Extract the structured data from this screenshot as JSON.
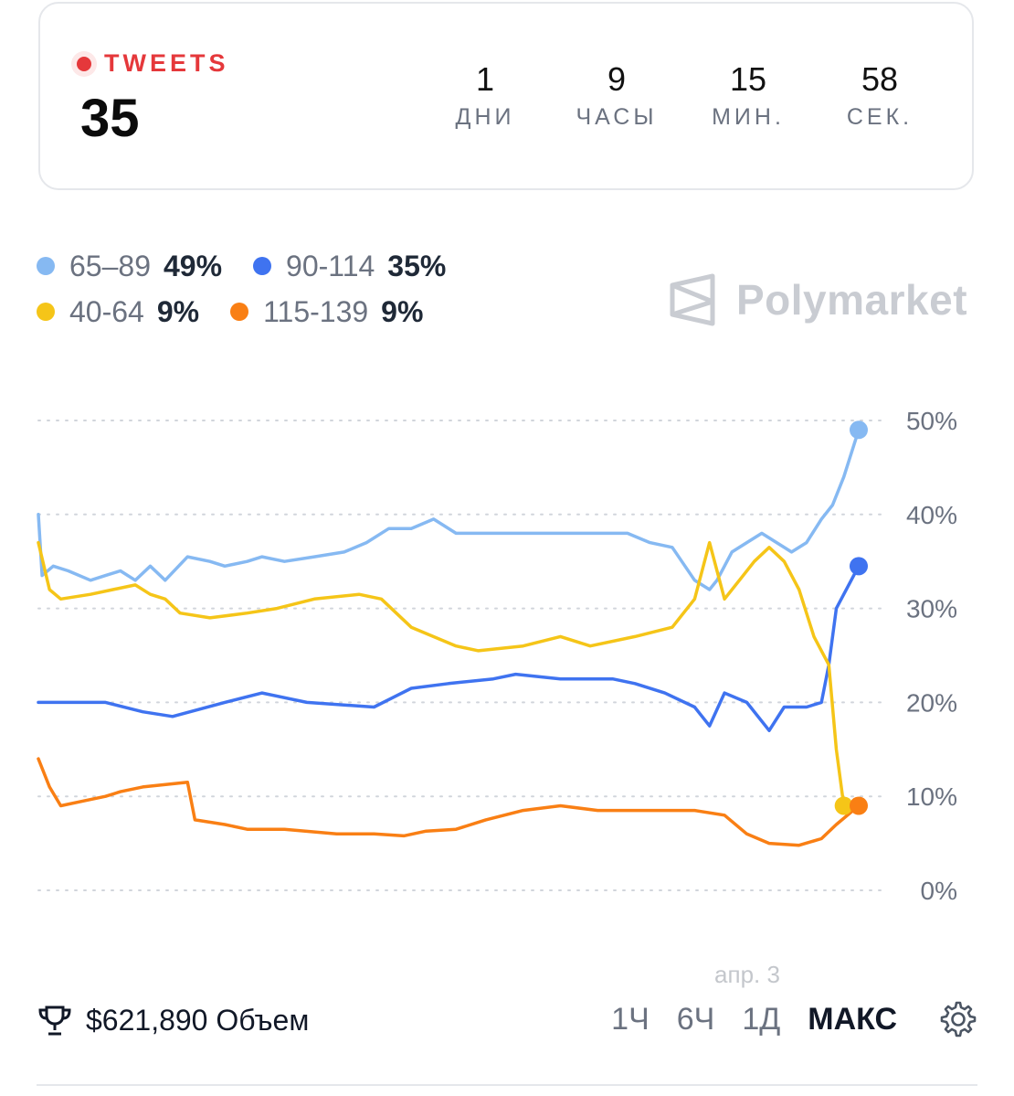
{
  "header": {
    "live_label": "TWEETS",
    "count": "35",
    "countdown": [
      {
        "value": "1",
        "unit": "ДНИ"
      },
      {
        "value": "9",
        "unit": "ЧАСЫ"
      },
      {
        "value": "15",
        "unit": "МИН."
      },
      {
        "value": "58",
        "unit": "СЕК."
      }
    ]
  },
  "legend": [
    {
      "name": "65–89",
      "value": "49%",
      "color": "#86b9f2"
    },
    {
      "name": "90-114",
      "value": "35%",
      "color": "#3f73f0"
    },
    {
      "name": "40-64",
      "value": "9%",
      "color": "#f5c518"
    },
    {
      "name": "115-139",
      "value": "9%",
      "color": "#f97f14"
    }
  ],
  "watermark": "Polymarket",
  "chart_data": {
    "type": "line",
    "y_ticks": [
      "50%",
      "40%",
      "30%",
      "20%",
      "10%",
      "0%"
    ],
    "ylim": [
      0,
      50
    ],
    "x_label": "апр. 3",
    "series": [
      {
        "name": "65–89",
        "color": "#86b9f2",
        "points": [
          [
            0,
            40
          ],
          [
            1,
            33.5
          ],
          [
            4,
            34.5
          ],
          [
            8,
            34
          ],
          [
            14,
            33
          ],
          [
            18,
            33.5
          ],
          [
            22,
            34
          ],
          [
            26,
            33
          ],
          [
            30,
            34.5
          ],
          [
            34,
            33
          ],
          [
            40,
            35.5
          ],
          [
            46,
            35
          ],
          [
            50,
            34.5
          ],
          [
            56,
            35
          ],
          [
            60,
            35.5
          ],
          [
            66,
            35
          ],
          [
            74,
            35.5
          ],
          [
            82,
            36
          ],
          [
            88,
            37
          ],
          [
            94,
            38.5
          ],
          [
            100,
            38.5
          ],
          [
            106,
            39.5
          ],
          [
            112,
            38
          ],
          [
            120,
            38
          ],
          [
            130,
            38
          ],
          [
            140,
            38
          ],
          [
            150,
            38
          ],
          [
            158,
            38
          ],
          [
            164,
            37
          ],
          [
            170,
            36.5
          ],
          [
            176,
            33
          ],
          [
            180,
            32
          ],
          [
            182,
            33
          ],
          [
            186,
            36
          ],
          [
            190,
            37
          ],
          [
            194,
            38
          ],
          [
            198,
            37
          ],
          [
            202,
            36
          ],
          [
            206,
            37
          ],
          [
            210,
            39.5
          ],
          [
            213,
            41
          ],
          [
            216,
            44
          ],
          [
            220,
            49
          ]
        ]
      },
      {
        "name": "90-114",
        "color": "#3f73f0",
        "points": [
          [
            0,
            20
          ],
          [
            18,
            20
          ],
          [
            28,
            19
          ],
          [
            36,
            18.5
          ],
          [
            50,
            20
          ],
          [
            60,
            21
          ],
          [
            72,
            20
          ],
          [
            90,
            19.5
          ],
          [
            100,
            21.5
          ],
          [
            110,
            22
          ],
          [
            122,
            22.5
          ],
          [
            128,
            23
          ],
          [
            140,
            22.5
          ],
          [
            154,
            22.5
          ],
          [
            160,
            22
          ],
          [
            168,
            21
          ],
          [
            176,
            19.5
          ],
          [
            180,
            17.5
          ],
          [
            184,
            21
          ],
          [
            190,
            20
          ],
          [
            196,
            17
          ],
          [
            200,
            19.5
          ],
          [
            206,
            19.5
          ],
          [
            210,
            20
          ],
          [
            212,
            24
          ],
          [
            214,
            30
          ],
          [
            220,
            34.5
          ]
        ]
      },
      {
        "name": "40-64",
        "color": "#f5c518",
        "points": [
          [
            0,
            37
          ],
          [
            3,
            32
          ],
          [
            6,
            31
          ],
          [
            14,
            31.5
          ],
          [
            20,
            32
          ],
          [
            26,
            32.5
          ],
          [
            30,
            31.5
          ],
          [
            34,
            31
          ],
          [
            38,
            29.5
          ],
          [
            46,
            29
          ],
          [
            56,
            29.5
          ],
          [
            64,
            30
          ],
          [
            74,
            31
          ],
          [
            86,
            31.5
          ],
          [
            92,
            31
          ],
          [
            100,
            28
          ],
          [
            112,
            26
          ],
          [
            118,
            25.5
          ],
          [
            130,
            26
          ],
          [
            140,
            27
          ],
          [
            148,
            26
          ],
          [
            160,
            27
          ],
          [
            170,
            28
          ],
          [
            176,
            31
          ],
          [
            180,
            37
          ],
          [
            184,
            31
          ],
          [
            188,
            33
          ],
          [
            192,
            35
          ],
          [
            196,
            36.5
          ],
          [
            200,
            35
          ],
          [
            204,
            32
          ],
          [
            208,
            27
          ],
          [
            212,
            24
          ],
          [
            214,
            15
          ],
          [
            216,
            9
          ]
        ]
      },
      {
        "name": "115-139",
        "color": "#f97f14",
        "points": [
          [
            0,
            14
          ],
          [
            3,
            11
          ],
          [
            6,
            9
          ],
          [
            12,
            9.5
          ],
          [
            18,
            10
          ],
          [
            22,
            10.5
          ],
          [
            28,
            11
          ],
          [
            40,
            11.5
          ],
          [
            42,
            7.5
          ],
          [
            50,
            7
          ],
          [
            56,
            6.5
          ],
          [
            66,
            6.5
          ],
          [
            80,
            6
          ],
          [
            90,
            6
          ],
          [
            98,
            5.8
          ],
          [
            104,
            6.3
          ],
          [
            112,
            6.5
          ],
          [
            120,
            7.5
          ],
          [
            130,
            8.5
          ],
          [
            140,
            9
          ],
          [
            150,
            8.5
          ],
          [
            162,
            8.5
          ],
          [
            176,
            8.5
          ],
          [
            184,
            8
          ],
          [
            190,
            6
          ],
          [
            196,
            5
          ],
          [
            204,
            4.8
          ],
          [
            210,
            5.5
          ],
          [
            214,
            7
          ],
          [
            220,
            9
          ]
        ]
      }
    ]
  },
  "footer": {
    "volume": "$621,890 Объем",
    "ranges": [
      "1Ч",
      "6Ч",
      "1Д",
      "МАКС"
    ],
    "active_range": "МАКС"
  }
}
